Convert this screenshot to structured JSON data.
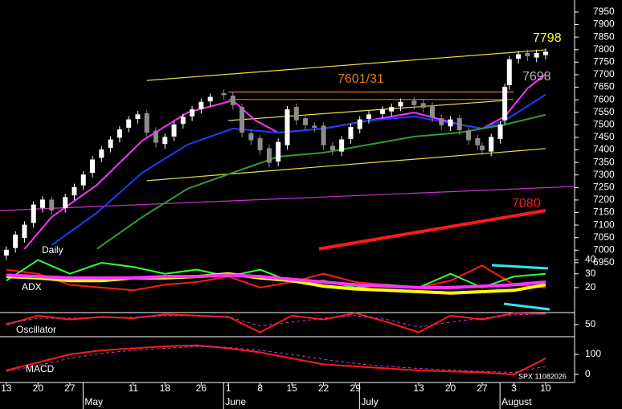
{
  "chart_data": [
    {
      "type": "candlestick",
      "title": "Daily",
      "xlim": [
        -1.4,
        125.4
      ],
      "xticks": [
        {
          "value": 0,
          "label": "13"
        },
        {
          "value": 7,
          "label": "20"
        },
        {
          "value": 14,
          "label": "27"
        },
        {
          "value": 28,
          "label": "11"
        },
        {
          "value": 35,
          "label": "18"
        },
        {
          "value": 43,
          "label": "26"
        },
        {
          "value": 49,
          "label": "1"
        },
        {
          "value": 56,
          "label": "8"
        },
        {
          "value": 63,
          "label": "15"
        },
        {
          "value": 70,
          "label": "22"
        },
        {
          "value": 77,
          "label": "29"
        },
        {
          "value": 91,
          "label": "13"
        },
        {
          "value": 98,
          "label": "20"
        },
        {
          "value": 105,
          "label": "27"
        },
        {
          "value": 112,
          "label": "3"
        },
        {
          "value": 119,
          "label": "10"
        }
      ],
      "month_ticks": [
        {
          "value": 18,
          "label": "May"
        },
        {
          "value": 49,
          "label": "June"
        },
        {
          "value": 79,
          "label": "July"
        },
        {
          "value": 110,
          "label": "August"
        }
      ],
      "ylim": [
        6940,
        7998
      ],
      "yticks": [
        6950,
        7000,
        7050,
        7100,
        7150,
        7200,
        7250,
        7300,
        7350,
        7400,
        7450,
        7500,
        7550,
        7600,
        7650,
        7700,
        7750,
        7800,
        7850,
        7900,
        7950
      ],
      "up_color": "#ffffff",
      "down_color": "#8c8c8c",
      "x": [
        0,
        2,
        4,
        6,
        8,
        10,
        13,
        15,
        17,
        19,
        21,
        23,
        25,
        27,
        29,
        31,
        33,
        35,
        37,
        39,
        41,
        43,
        45,
        48,
        50,
        52,
        54,
        56,
        58,
        60,
        62,
        64,
        66,
        68,
        70,
        72,
        74,
        76,
        78,
        80,
        83,
        85,
        87,
        90,
        92,
        94,
        96,
        98,
        100,
        102,
        104,
        105,
        107,
        109,
        110,
        111,
        113,
        115,
        117,
        119
      ],
      "open": [
        6980,
        7010,
        7050,
        7110,
        7170,
        7200,
        7170,
        7220,
        7260,
        7310,
        7370,
        7410,
        7450,
        7490,
        7525,
        7545,
        7475,
        7425,
        7455,
        7505,
        7535,
        7565,
        7595,
        7625,
        7615,
        7570,
        7465,
        7445,
        7405,
        7355,
        7420,
        7570,
        7525,
        7495,
        7495,
        7415,
        7395,
        7445,
        7485,
        7525,
        7545,
        7555,
        7575,
        7595,
        7585,
        7575,
        7525,
        7495,
        7525,
        7475,
        7445,
        7415,
        7395,
        7445,
        7520,
        7660,
        7765,
        7785,
        7770,
        7780
      ],
      "high": [
        7015,
        7075,
        7115,
        7195,
        7215,
        7215,
        7225,
        7265,
        7315,
        7375,
        7415,
        7455,
        7495,
        7535,
        7555,
        7560,
        7490,
        7465,
        7515,
        7545,
        7575,
        7605,
        7625,
        7640,
        7630,
        7585,
        7480,
        7460,
        7420,
        7445,
        7575,
        7585,
        7540,
        7510,
        7510,
        7430,
        7455,
        7505,
        7535,
        7555,
        7575,
        7585,
        7605,
        7610,
        7600,
        7590,
        7540,
        7535,
        7540,
        7490,
        7460,
        7430,
        7465,
        7515,
        7665,
        7775,
        7795,
        7800,
        7800,
        7805
      ],
      "low": [
        6960,
        6990,
        7030,
        7090,
        7150,
        7140,
        7150,
        7200,
        7240,
        7290,
        7350,
        7390,
        7430,
        7470,
        7505,
        7450,
        7410,
        7405,
        7435,
        7485,
        7515,
        7545,
        7575,
        7600,
        7560,
        7450,
        7420,
        7380,
        7330,
        7335,
        7400,
        7500,
        7480,
        7470,
        7400,
        7380,
        7375,
        7425,
        7465,
        7505,
        7525,
        7535,
        7555,
        7560,
        7550,
        7510,
        7480,
        7475,
        7460,
        7420,
        7400,
        7380,
        7375,
        7425,
        7500,
        7640,
        7745,
        7755,
        7750,
        7760
      ],
      "close": [
        7000,
        7060,
        7100,
        7180,
        7200,
        7160,
        7210,
        7250,
        7300,
        7360,
        7400,
        7440,
        7480,
        7520,
        7540,
        7470,
        7430,
        7450,
        7500,
        7530,
        7560,
        7590,
        7610,
        7620,
        7580,
        7470,
        7440,
        7400,
        7350,
        7430,
        7560,
        7520,
        7500,
        7490,
        7420,
        7400,
        7440,
        7490,
        7520,
        7540,
        7560,
        7570,
        7590,
        7580,
        7570,
        7530,
        7500,
        7520,
        7480,
        7440,
        7420,
        7400,
        7450,
        7500,
        7650,
        7760,
        7780,
        7775,
        7785,
        7790
      ],
      "overlays": [
        {
          "color": "#ff33ff",
          "x": [
            4,
            10,
            20,
            30,
            40,
            50,
            55,
            60,
            70,
            80,
            90,
            100,
            105,
            110,
            115,
            119
          ],
          "values": [
            7004,
            7132,
            7260,
            7437,
            7549,
            7597,
            7517,
            7469,
            7485,
            7517,
            7549,
            7501,
            7485,
            7533,
            7645,
            7702
          ]
        },
        {
          "color": "#1f3dff",
          "x": [
            10,
            20,
            30,
            40,
            50,
            60,
            70,
            80,
            90,
            100,
            105,
            110,
            119
          ],
          "values": [
            7020,
            7149,
            7309,
            7421,
            7485,
            7469,
            7485,
            7517,
            7533,
            7501,
            7485,
            7517,
            7620
          ]
        },
        {
          "color": "#2e9e2e",
          "x": [
            20,
            30,
            40,
            50,
            60,
            70,
            80,
            90,
            100,
            110,
            119
          ],
          "values": [
            7005,
            7132,
            7245,
            7309,
            7373,
            7389,
            7421,
            7453,
            7469,
            7501,
            7540
          ]
        }
      ],
      "trend_lines": [
        {
          "color": "#e6e04a",
          "x": [
            31,
            119
          ],
          "values": [
            7677,
            7799
          ]
        },
        {
          "color": "#e6e04a",
          "x": [
            49,
            110
          ],
          "values": [
            7517,
            7597
          ]
        },
        {
          "color": "#e6e04a",
          "x": [
            31,
            119
          ],
          "values": [
            7277,
            7405
          ]
        },
        {
          "color": "#cc33cc",
          "x": [
            -1.4,
            125.4
          ],
          "values": [
            7158,
            7254
          ]
        },
        {
          "color": "#ff1a1a",
          "x": [
            69,
            119
          ],
          "values": [
            7005,
            7158
          ]
        },
        {
          "color": "#e07a1a",
          "x": [
            49,
            112
          ],
          "values": [
            7631,
            7631
          ]
        },
        {
          "color": "#e07a1a",
          "x": [
            49,
            112
          ],
          "values": [
            7601,
            7601
          ]
        }
      ],
      "annotations": [
        {
          "text": "7798",
          "color": "#ffff33"
        },
        {
          "text": "7698",
          "color": "#b3b3b3"
        },
        {
          "text": "7601/31",
          "color": "#e07a1a"
        },
        {
          "text": "7080",
          "color": "#ff1a1a"
        }
      ]
    },
    {
      "type": "line",
      "title": "ADX",
      "ylim": [
        10,
        45
      ],
      "yticks": [
        20,
        30,
        40
      ],
      "x": [
        0,
        7,
        14,
        21,
        28,
        35,
        42,
        49,
        56,
        63,
        70,
        77,
        84,
        91,
        98,
        105,
        112,
        119
      ],
      "series": [
        {
          "color": "#ff1a1a",
          "values": [
            33,
            30,
            22,
            20,
            18,
            22,
            24,
            28,
            20,
            24,
            30,
            24,
            22,
            20,
            25,
            36,
            22,
            20
          ]
        },
        {
          "color": "#33ff33",
          "values": [
            25,
            40,
            30,
            38,
            35,
            30,
            33,
            28,
            33,
            24,
            25,
            20,
            22,
            20,
            30,
            20,
            28,
            30
          ]
        },
        {
          "color": "#ffff00",
          "values": [
            28,
            27,
            25,
            25,
            27,
            27,
            28,
            30,
            27,
            25,
            21,
            19,
            18,
            17,
            16,
            17,
            18,
            22
          ]
        },
        {
          "color": "#ff33ff",
          "values": [
            29,
            28,
            27,
            27,
            27,
            28,
            28,
            29,
            28,
            26,
            24,
            22,
            21,
            20,
            20,
            21,
            22,
            24
          ]
        }
      ]
    },
    {
      "type": "line",
      "title": "Oscillator",
      "ylim": [
        0,
        100
      ],
      "yticks": [
        50
      ],
      "x": [
        0,
        7,
        14,
        21,
        28,
        35,
        42,
        49,
        56,
        63,
        70,
        77,
        84,
        91,
        98,
        105,
        112,
        119
      ],
      "series": [
        {
          "color": "#ff1a1a",
          "values": [
            50,
            85,
            70,
            80,
            75,
            90,
            85,
            80,
            20,
            85,
            70,
            95,
            60,
            20,
            85,
            70,
            95,
            92
          ]
        },
        {
          "color": "#cc33cc",
          "dashed": true,
          "values": [
            55,
            75,
            75,
            78,
            78,
            85,
            85,
            80,
            45,
            60,
            75,
            85,
            70,
            40,
            60,
            75,
            88,
            92
          ]
        }
      ]
    },
    {
      "type": "line",
      "title": "MACD",
      "note": "SPX 11082026",
      "ylim": [
        -36,
        164
      ],
      "yticks": [
        0,
        100
      ],
      "x": [
        0,
        7,
        14,
        21,
        28,
        35,
        42,
        49,
        56,
        63,
        70,
        77,
        84,
        91,
        98,
        105,
        112,
        119
      ],
      "series": [
        {
          "color": "#ff1a1a",
          "values": [
            20,
            60,
            100,
            120,
            130,
            140,
            145,
            130,
            110,
            80,
            50,
            40,
            30,
            20,
            15,
            10,
            0,
            80
          ]
        },
        {
          "color": "#cc33cc",
          "dashed": true,
          "values": [
            15,
            45,
            80,
            105,
            120,
            130,
            140,
            135,
            120,
            100,
            75,
            55,
            40,
            30,
            22,
            15,
            10,
            40
          ]
        }
      ]
    }
  ]
}
